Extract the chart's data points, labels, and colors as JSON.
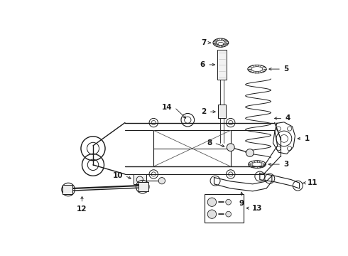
{
  "bg_color": "#ffffff",
  "line_color": "#1a1a1a",
  "fig_width": 4.9,
  "fig_height": 3.6,
  "dpi": 100,
  "label_fontsize": 7.5,
  "arrow_lw": 0.6,
  "comp_lw": 0.7
}
